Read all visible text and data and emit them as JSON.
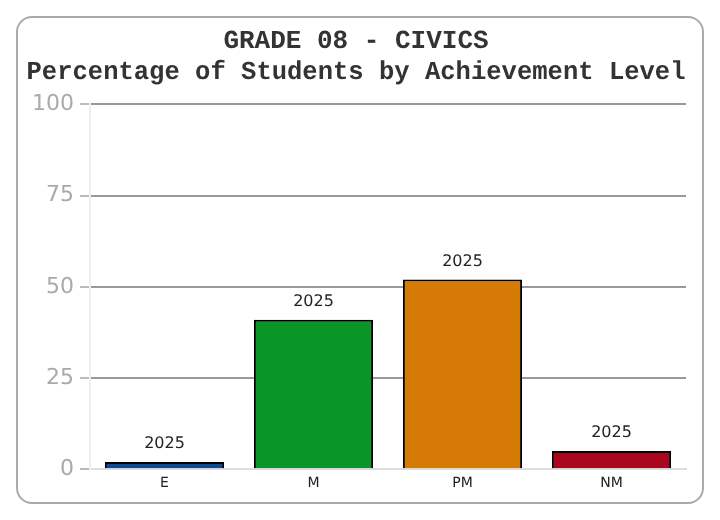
{
  "chart_data": {
    "type": "bar",
    "title": "GRADE 08 - CIVICS",
    "subtitle": "Percentage of Students by Achievement Level",
    "categories": [
      "E",
      "M",
      "PM",
      "NM"
    ],
    "series": [
      {
        "name": "2025",
        "colors": [
          "#0d4a94",
          "#0a9626",
          "#d67a06",
          "#a8061e"
        ],
        "values": [
          2,
          41,
          52,
          5
        ]
      }
    ],
    "ylim": [
      0,
      100
    ],
    "yticks": [
      0,
      25,
      50,
      75,
      100
    ],
    "grid": "y",
    "legend": false
  }
}
